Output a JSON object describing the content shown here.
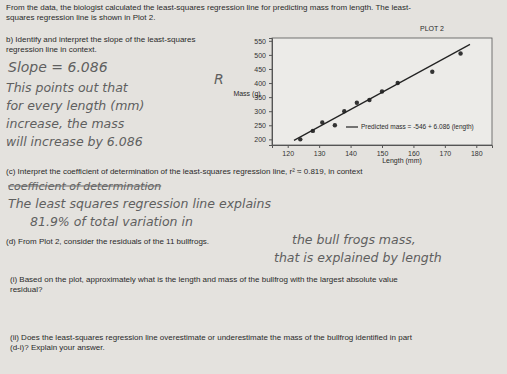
{
  "document": {
    "intro": [
      "From the data, the biologist calculated the least-squares regression line for predicting mass from length. The least-",
      "squares regression line is shown in Plot 2."
    ],
    "part_b": [
      "b) Identify and interpret the slope of the least-squares",
      "regression line in context."
    ],
    "answer_b": [
      "Slope = 6.086",
      "This points out that",
      "for every length (mm)",
      "increase, the mass",
      "will increase by 6.086"
    ],
    "margin_note": "R",
    "part_c": "(c) Interpret the coefficient of determination of the least-squares regression line, r² ≈ 0.819, in context",
    "answer_c_crossed": "coefficient of determination",
    "answer_c": [
      "The least squares regression line explains",
      "81.9% of total variation in",
      "the bull frogs mass,",
      "that is explained by length"
    ],
    "part_d": "(d) From Plot 2, consider the residuals of the 11 bullfrogs.",
    "part_d_i": [
      "(i) Based on the plot, approximately what is the length and mass of the bullfrog with the largest absolute value",
      "residual?"
    ],
    "part_d_ii": [
      "(ii) Does the least-squares regression line overestimate or underestimate the mass of the bullfrog identified in part",
      "(d-i)? Explain your answer."
    ]
  },
  "chart_data": {
    "type": "scatter",
    "title": "PLOT 2",
    "x_label": "Length (mm)",
    "y_label": "Mass (g)",
    "xlim": [
      115,
      185
    ],
    "ylim": [
      180,
      560
    ],
    "xticks": [
      120,
      130,
      140,
      150,
      160,
      170,
      180
    ],
    "yticks": [
      200,
      250,
      300,
      350,
      400,
      450,
      500,
      550
    ],
    "grid": false,
    "legend": "lower right",
    "series": [
      {
        "type": "scatter",
        "color": "#333333",
        "marker": "circle",
        "x": [
          124,
          128,
          131,
          135,
          138,
          142,
          146,
          150,
          155,
          166,
          175
        ],
        "values": [
          200,
          230,
          260,
          250,
          300,
          330,
          340,
          370,
          400,
          440,
          505
        ]
      },
      {
        "name": "Predicted mass = -546 + 6.086 (length)",
        "type": "line",
        "color": "#222222",
        "line_style": "solid",
        "x": [
          122,
          178
        ],
        "values": [
          196.5,
          537.3
        ]
      }
    ]
  }
}
